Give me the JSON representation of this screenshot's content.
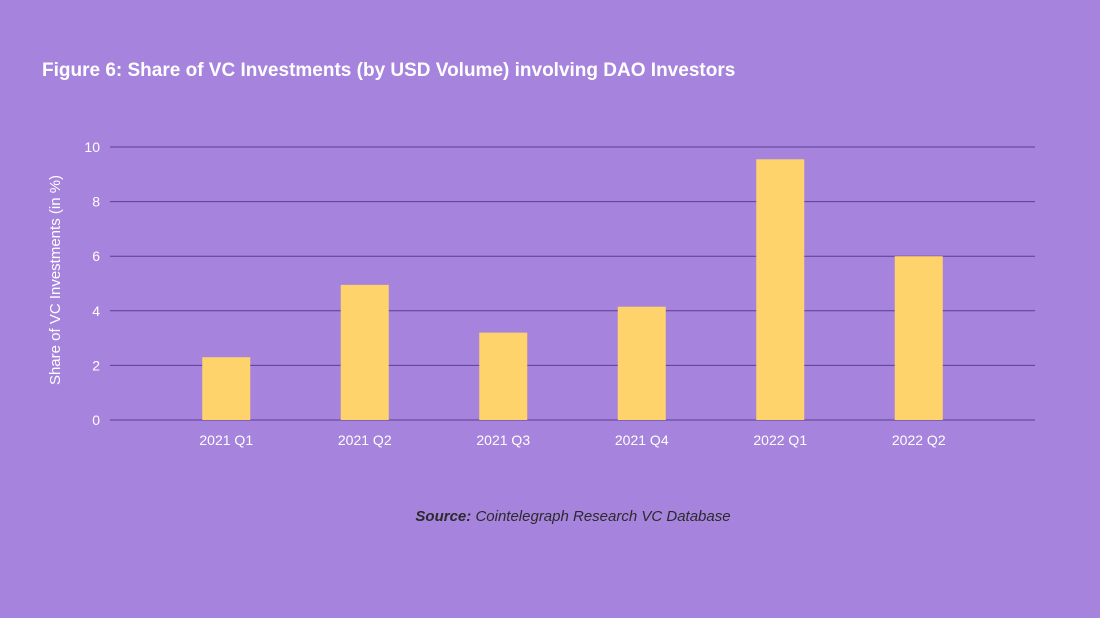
{
  "title": "Figure 6: Share of VC Investments (by USD Volume) involving DAO Investors",
  "source": {
    "label": "Source:",
    "text": "Cointelegraph Research VC Database"
  },
  "colors": {
    "background": "#a683dd",
    "bar": "#ffd36b",
    "grid": "#5a3f8f",
    "text": "#ffffff"
  },
  "chart_data": {
    "type": "bar",
    "categories": [
      "2021 Q1",
      "2021 Q2",
      "2021 Q3",
      "2021 Q4",
      "2022 Q1",
      "2022 Q2"
    ],
    "values": [
      2.3,
      4.95,
      3.2,
      4.15,
      9.55,
      6.0
    ],
    "ylabel": "Share of VC Investments (in %)",
    "xlabel": "",
    "ylim": [
      0,
      10
    ],
    "yticks": [
      0,
      2,
      4,
      6,
      8,
      10
    ],
    "grid": true,
    "legend": false
  }
}
